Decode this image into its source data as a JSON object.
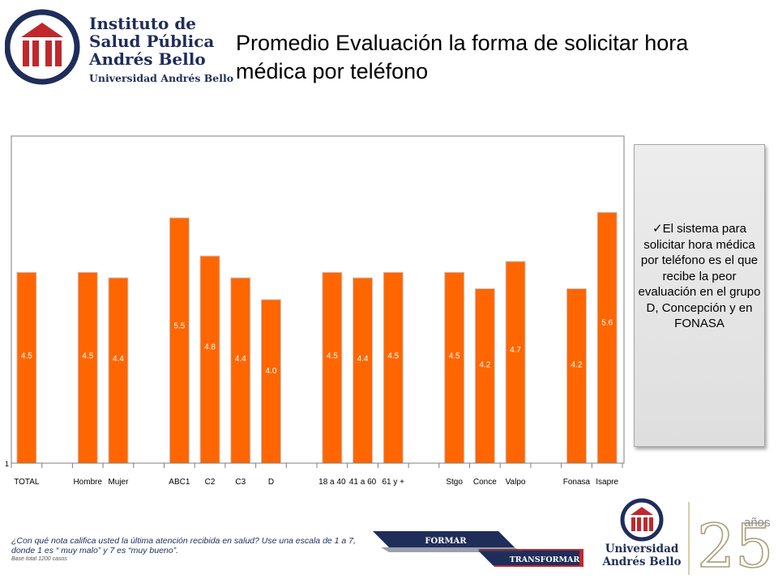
{
  "header": {
    "logo_lines": [
      "Instituto de",
      "Salud Pública",
      "Andrés Bello",
      "Universidad Andrés Bello"
    ],
    "title": "Promedio Evaluación la forma de solicitar hora médica por teléfono"
  },
  "note": {
    "text": "✓El sistema para solicitar hora médica por teléfono es el que recibe la peor evaluación en el grupo D, Concepción y en FONASA"
  },
  "footer": {
    "question": "¿Con qué nota califica usted la última atención recibida en salud? Use una escala de 1 a 7, donde 1 es “ muy malo” y 7 es “muy bueno”.",
    "base": "Base total 1200 casos",
    "ribbon_top": "FORMAR",
    "ribbon_bottom": "TRANSFORMAR",
    "university_name": [
      "Universidad",
      "Andrés Bello"
    ],
    "anniversary_number": "25",
    "anniversary_word": "años"
  },
  "colors": {
    "bar": "#ff6600",
    "bar_top": "#c8c8c8",
    "navy": "#1f2d5a",
    "crimson": "#c0282d"
  },
  "chart_data": {
    "type": "bar",
    "categories": [
      "TOTAL",
      "Hombre",
      "Mujer",
      "ABC1",
      "C2",
      "C3",
      "D",
      "18 a 40",
      "41 a 60",
      "61 y +",
      "Stgo",
      "Conce",
      "Valpo",
      "Fonasa",
      "Isapre"
    ],
    "values": [
      4.5,
      4.5,
      4.4,
      5.5,
      4.8,
      4.4,
      4.0,
      4.5,
      4.4,
      4.5,
      4.5,
      4.2,
      4.7,
      4.2,
      5.6
    ],
    "y_min": 1,
    "y_max": 7,
    "y_tick_labels": [
      "1"
    ],
    "groups": [
      [
        "TOTAL"
      ],
      [
        "Hombre",
        "Mujer"
      ],
      [
        "ABC1",
        "C2",
        "C3",
        "D"
      ],
      [
        "18 a 40",
        "41 a 60",
        "61 y +"
      ],
      [
        "Stgo",
        "Conce",
        "Valpo"
      ],
      [
        "Fonasa",
        "Isapre"
      ]
    ],
    "grid": false,
    "legend": "none"
  }
}
